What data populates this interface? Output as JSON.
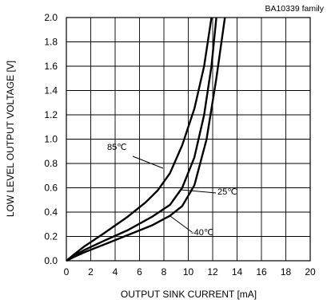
{
  "chart_data": {
    "type": "line",
    "title": "",
    "subtitle": "BA10339 family",
    "xlabel": "OUTPUT SINK CURRENT [mA]",
    "ylabel": "LOW LEVEL OUTPUT VOLTAGE [V]",
    "xlim": [
      0,
      20
    ],
    "ylim": [
      0,
      2.0
    ],
    "x_ticks": [
      "0",
      "2",
      "4",
      "6",
      "8",
      "10",
      "12",
      "14",
      "16",
      "18",
      "20"
    ],
    "y_ticks": [
      "0.0",
      "0.2",
      "0.4",
      "0.6",
      "0.8",
      "1.0",
      "1.2",
      "1.4",
      "1.6",
      "1.8",
      "2.0"
    ],
    "grid": true,
    "legend": "none",
    "series": [
      {
        "name": "85℃",
        "points": [
          [
            0,
            0.0
          ],
          [
            0.6,
            0.05
          ],
          [
            1.5,
            0.12
          ],
          [
            3,
            0.22
          ],
          [
            5,
            0.36
          ],
          [
            6.5,
            0.48
          ],
          [
            7.5,
            0.58
          ],
          [
            8.5,
            0.72
          ],
          [
            9.5,
            0.95
          ],
          [
            10.5,
            1.25
          ],
          [
            11.3,
            1.6
          ],
          [
            11.9,
            2.0
          ]
        ]
      },
      {
        "name": "25℃",
        "points": [
          [
            0,
            0.0
          ],
          [
            0.6,
            0.04
          ],
          [
            1.5,
            0.09
          ],
          [
            3,
            0.16
          ],
          [
            5,
            0.25
          ],
          [
            7,
            0.36
          ],
          [
            8.5,
            0.46
          ],
          [
            9.5,
            0.6
          ],
          [
            10.5,
            0.85
          ],
          [
            11.3,
            1.2
          ],
          [
            11.9,
            1.6
          ],
          [
            12.3,
            2.0
          ]
        ]
      },
      {
        "name": "-40℃",
        "points": [
          [
            0,
            0.0
          ],
          [
            0.6,
            0.03
          ],
          [
            1.5,
            0.07
          ],
          [
            3,
            0.13
          ],
          [
            5,
            0.21
          ],
          [
            7,
            0.29
          ],
          [
            8.5,
            0.37
          ],
          [
            9.5,
            0.45
          ],
          [
            10.5,
            0.62
          ],
          [
            11.5,
            1.0
          ],
          [
            12.3,
            1.5
          ],
          [
            13.0,
            2.0
          ]
        ]
      }
    ],
    "annotations": [
      {
        "text": "85℃",
        "series": "85℃"
      },
      {
        "text": "25℃",
        "series": "25℃"
      },
      {
        "text": "-40℃",
        "series": "-40℃"
      }
    ]
  }
}
